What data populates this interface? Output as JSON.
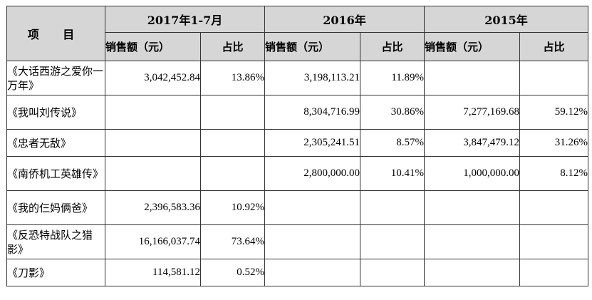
{
  "table": {
    "item_header": "项 目",
    "periods": [
      "2017年1-7月",
      "2016年",
      "2015年"
    ],
    "amount_label": "销售额（元）",
    "share_label": "占比",
    "rows": [
      {
        "title": "《大话西游之爱你一万年》",
        "p1_amount": "3,042,452.84",
        "p1_share": "13.86%",
        "p2_amount": "3,198,113.21",
        "p2_share": "11.89%",
        "p3_amount": "",
        "p3_share": ""
      },
      {
        "title": "《我叫刘传说》",
        "p1_amount": "",
        "p1_share": "",
        "p2_amount": "8,304,716.99",
        "p2_share": "30.86%",
        "p3_amount": "7,277,169.68",
        "p3_share": "59.12%"
      },
      {
        "title": "《忠者无敌》",
        "p1_amount": "",
        "p1_share": "",
        "p2_amount": "2,305,241.51",
        "p2_share": "8.57%",
        "p3_amount": "3,847,479.12",
        "p3_share": "31.26%"
      },
      {
        "title": "《南侨机工英雄传》",
        "p1_amount": "",
        "p1_share": "",
        "p2_amount": "2,800,000.00",
        "p2_share": "10.41%",
        "p3_amount": "1,000,000.00",
        "p3_share": "8.12%"
      },
      {
        "title": "《我的仨妈俩爸》",
        "p1_amount": "2,396,583.36",
        "p1_share": "10.92%",
        "p2_amount": "",
        "p2_share": "",
        "p3_amount": "",
        "p3_share": ""
      },
      {
        "title": "《反恐特战队之猎影》",
        "p1_amount": "16,166,037.74",
        "p1_share": "73.64%",
        "p2_amount": "",
        "p2_share": "",
        "p3_amount": "",
        "p3_share": ""
      },
      {
        "title": "《刀影》",
        "p1_amount": "114,581.12",
        "p1_share": "0.52%",
        "p2_amount": "",
        "p2_share": "",
        "p3_amount": "",
        "p3_share": ""
      }
    ]
  }
}
